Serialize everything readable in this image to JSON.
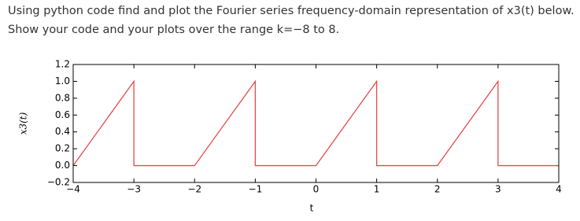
{
  "question": [
    "Using python code find and plot the Fourier series frequency-domain representation of x3(t) below.",
    "Show your code and your plots over the range k=−8 to 8."
  ],
  "chart_data": {
    "type": "line",
    "x_label": "t",
    "y_label": "x3(t)",
    "series": [
      {
        "name": "x3(t)",
        "color": "#e8484a",
        "x": [
          -4,
          -3,
          -3,
          -2,
          -1,
          -1,
          0,
          1,
          1,
          2,
          3,
          3,
          4
        ],
        "values": [
          0,
          1,
          0,
          0,
          1,
          0,
          0,
          1,
          0,
          0,
          1,
          0,
          0
        ]
      }
    ],
    "xlim": [
      -4,
      4
    ],
    "xticks": [
      {
        "value": -4,
        "label": "−4"
      },
      {
        "value": -3,
        "label": "−3"
      },
      {
        "value": -2,
        "label": "−2"
      },
      {
        "value": -1,
        "label": "−1"
      },
      0,
      1,
      2,
      3,
      4
    ],
    "ylim": [
      -0.2,
      1.2
    ],
    "yticks": [
      {
        "value": -0.2,
        "label": "−0.2"
      },
      {
        "value": 0,
        "label": "0.0"
      },
      {
        "value": 0.2,
        "label": "0.2"
      },
      {
        "value": 0.4,
        "label": "0.4"
      },
      {
        "value": 0.6,
        "label": "0.6"
      },
      {
        "value": 0.8,
        "label": "0.8"
      },
      {
        "value": 1.0,
        "label": "1.0"
      },
      {
        "value": 1.2,
        "label": "1.2"
      }
    ],
    "grid": false
  }
}
